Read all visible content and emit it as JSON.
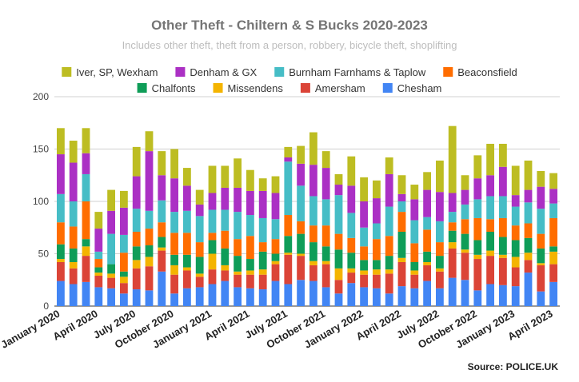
{
  "chart_data": {
    "type": "bar",
    "stacked": true,
    "title": "Other Theft - Chiltern & S Bucks 2020-2023",
    "subtitle": "Includes other theft, theft from a person, robbery, bicycle theft, shoplifting",
    "source": "Source:  POLICE.UK",
    "ylim": [
      0,
      200
    ],
    "yticks": [
      0,
      50,
      100,
      150,
      200
    ],
    "grid": true,
    "legend_position": "top",
    "categories": [
      "2020-01",
      "2020-02",
      "2020-03",
      "2020-04",
      "2020-05",
      "2020-06",
      "2020-07",
      "2020-08",
      "2020-09",
      "2020-10",
      "2020-11",
      "2020-12",
      "2021-01",
      "2021-02",
      "2021-03",
      "2021-04",
      "2021-05",
      "2021-06",
      "2021-07",
      "2021-08",
      "2021-09",
      "2021-10",
      "2021-11",
      "2021-12",
      "2022-01",
      "2022-02",
      "2022-03",
      "2022-04",
      "2022-05",
      "2022-06",
      "2022-07",
      "2022-08",
      "2022-09",
      "2022-10",
      "2022-11",
      "2022-12",
      "2023-01",
      "2023-02",
      "2023-03",
      "2023-04"
    ],
    "x_tick_labels": [
      {
        "index": 0,
        "label": "January 2020"
      },
      {
        "index": 3,
        "label": "April 2020"
      },
      {
        "index": 6,
        "label": "July 2020"
      },
      {
        "index": 9,
        "label": "October 2020"
      },
      {
        "index": 12,
        "label": "January 2021"
      },
      {
        "index": 15,
        "label": "April 2021"
      },
      {
        "index": 18,
        "label": "July 2021"
      },
      {
        "index": 21,
        "label": "October 2021"
      },
      {
        "index": 24,
        "label": "January 2022"
      },
      {
        "index": 27,
        "label": "April 2022"
      },
      {
        "index": 30,
        "label": "July 2022"
      },
      {
        "index": 33,
        "label": "October 2022"
      },
      {
        "index": 36,
        "label": "January 2023"
      },
      {
        "index": 39,
        "label": "April 2023"
      }
    ],
    "series": [
      {
        "name": "Chesham",
        "color": "#4285f4",
        "values": [
          24,
          21,
          23,
          18,
          17,
          12,
          16,
          15,
          33,
          12,
          17,
          18,
          21,
          24,
          18,
          17,
          16,
          24,
          21,
          25,
          24,
          18,
          12,
          22,
          18,
          17,
          12,
          19,
          17,
          24,
          17,
          27,
          25,
          15,
          21,
          20,
          19,
          32,
          14,
          23
        ]
      },
      {
        "name": "Amersham",
        "color": "#db4437",
        "values": [
          18,
          15,
          25,
          11,
          10,
          10,
          20,
          23,
          20,
          18,
          17,
          10,
          14,
          10,
          12,
          13,
          14,
          16,
          28,
          23,
          15,
          22,
          13,
          10,
          12,
          13,
          19,
          23,
          13,
          15,
          16,
          28,
          26,
          30,
          27,
          26,
          18,
          12,
          25,
          17
        ]
      },
      {
        "name": "Missendens",
        "color": "#f4b400",
        "values": [
          3,
          6,
          9,
          3,
          4,
          6,
          8,
          9,
          3,
          9,
          3,
          3,
          15,
          5,
          3,
          4,
          5,
          3,
          2,
          2,
          4,
          3,
          11,
          4,
          4,
          5,
          4,
          4,
          4,
          3,
          3,
          6,
          3,
          4,
          5,
          3,
          10,
          7,
          2,
          12
        ]
      },
      {
        "name": "Chalfonts",
        "color": "#0f9d58",
        "values": [
          14,
          13,
          7,
          5,
          9,
          5,
          13,
          11,
          10,
          10,
          12,
          16,
          13,
          16,
          15,
          11,
          17,
          7,
          16,
          19,
          18,
          14,
          18,
          15,
          10,
          9,
          13,
          25,
          8,
          10,
          12,
          11,
          15,
          14,
          18,
          17,
          16,
          14,
          14,
          5
        ]
      },
      {
        "name": "Beaconsfield",
        "color": "#ff6d00",
        "values": [
          21,
          21,
          36,
          8,
          0,
          18,
          14,
          16,
          14,
          21,
          21,
          14,
          7,
          17,
          16,
          22,
          9,
          14,
          20,
          12,
          16,
          20,
          15,
          14,
          13,
          20,
          19,
          19,
          18,
          21,
          13,
          8,
          14,
          21,
          12,
          18,
          14,
          14,
          14,
          27
        ]
      },
      {
        "name": "Burnham Farnhams & Taplow",
        "color": "#46bdc6",
        "values": [
          27,
          24,
          26,
          7,
          29,
          17,
          22,
          17,
          21,
          20,
          21,
          25,
          22,
          20,
          26,
          20,
          23,
          19,
          51,
          34,
          28,
          25,
          37,
          24,
          18,
          15,
          28,
          10,
          22,
          12,
          20,
          10,
          14,
          18,
          22,
          21,
          18,
          20,
          24,
          14
        ]
      },
      {
        "name": "Denham & GX",
        "color": "#ab30c4",
        "values": [
          38,
          37,
          20,
          22,
          22,
          26,
          31,
          57,
          24,
          32,
          24,
          11,
          16,
          21,
          23,
          23,
          26,
          25,
          4,
          21,
          30,
          30,
          10,
          26,
          25,
          24,
          31,
          7,
          20,
          26,
          28,
          18,
          14,
          20,
          20,
          28,
          11,
          12,
          21,
          14
        ]
      },
      {
        "name": "Iver, SP, Wexham",
        "color": "#bdbd22",
        "values": [
          25,
          21,
          24,
          16,
          20,
          16,
          28,
          19,
          23,
          28,
          17,
          14,
          26,
          21,
          28,
          20,
          12,
          16,
          10,
          17,
          31,
          16,
          10,
          28,
          23,
          17,
          16,
          18,
          14,
          17,
          30,
          64,
          14,
          22,
          30,
          22,
          28,
          28,
          15,
          15
        ]
      }
    ],
    "legend_rows": [
      [
        "Iver, SP, Wexham",
        "Denham & GX",
        "Burnham Farnhams & Taplow",
        "Beaconsfield"
      ],
      [
        "Chalfonts",
        "Missendens",
        "Amersham",
        "Chesham"
      ]
    ]
  }
}
